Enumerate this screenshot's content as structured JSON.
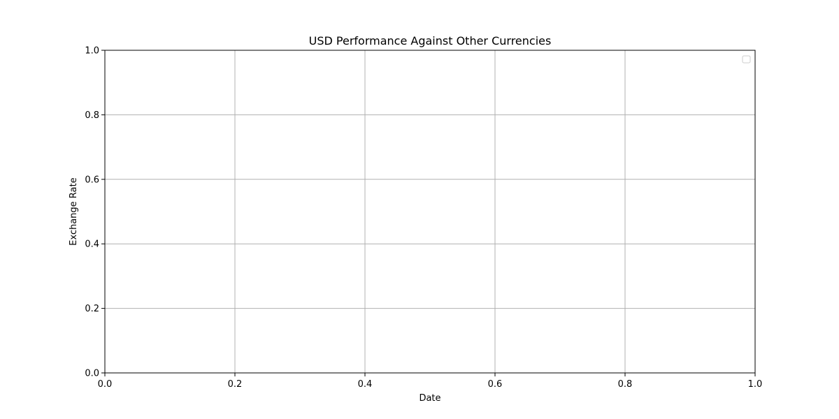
{
  "chart_data": {
    "type": "line",
    "title": "USD Performance Against Other Currencies",
    "xlabel": "Date",
    "ylabel": "Exchange Rate",
    "xlim": [
      0.0,
      1.0
    ],
    "ylim": [
      0.0,
      1.0
    ],
    "xticks": [
      "0.0",
      "0.2",
      "0.4",
      "0.6",
      "0.8",
      "1.0"
    ],
    "yticks": [
      "0.0",
      "0.2",
      "0.4",
      "0.6",
      "0.8",
      "1.0"
    ],
    "series": [],
    "grid": true,
    "legend": "top-right",
    "legend_entries": []
  },
  "colors": {
    "grid": "#b0b0b0",
    "axis": "#000000",
    "background": "#ffffff"
  }
}
